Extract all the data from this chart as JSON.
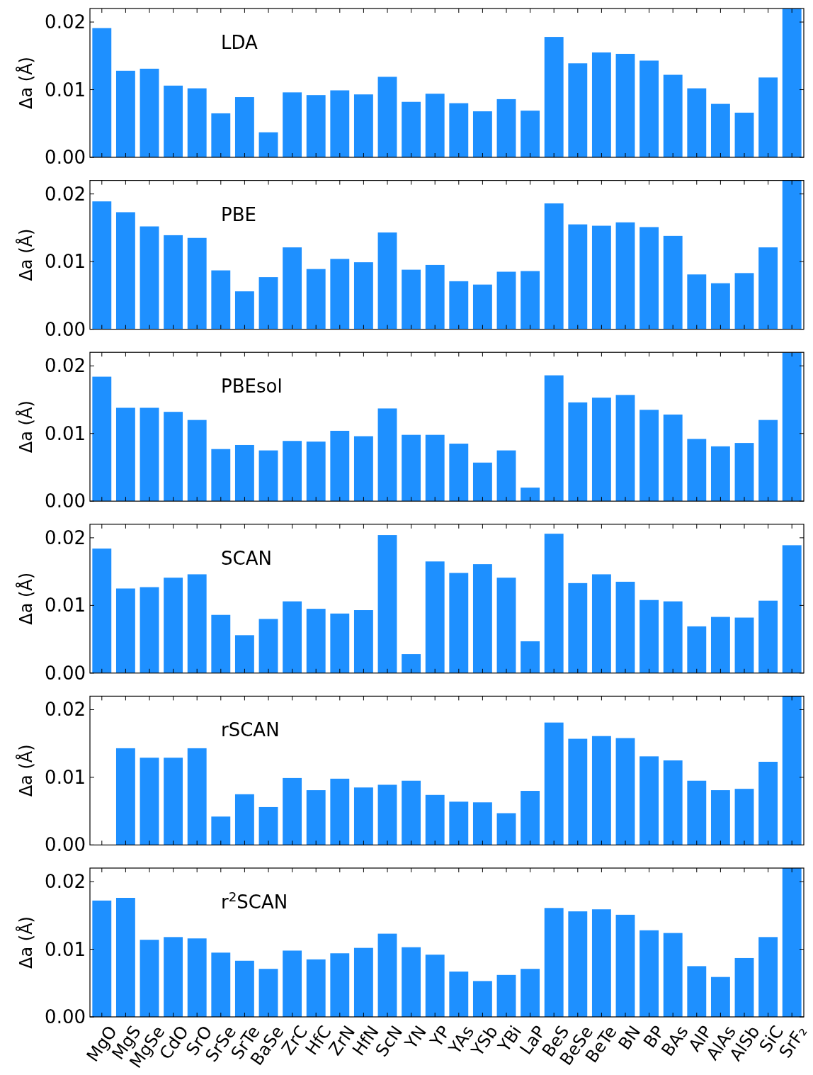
{
  "chart_data": [
    {
      "type": "bar",
      "title": "LDA",
      "ylabel": "Δa (Å)",
      "categories": [
        null,
        null,
        null,
        null,
        null,
        null,
        null,
        null,
        null,
        null,
        null,
        null,
        null,
        null,
        null,
        null,
        null,
        null,
        null,
        null,
        null,
        null,
        null,
        null,
        null,
        null,
        null,
        null,
        null,
        null
      ],
      "color": "#1e90ff",
      "values": [
        0.0191,
        0.0128,
        0.0131,
        0.0106,
        0.0102,
        0.0065,
        0.0089,
        0.0037,
        0.0096,
        0.0092,
        0.0099,
        0.0093,
        0.0119,
        0.0082,
        0.0094,
        0.008,
        0.0068,
        0.0086,
        0.0069,
        0.0178,
        0.0139,
        0.0155,
        0.0153,
        0.0143,
        0.0122,
        0.0102,
        0.0079,
        0.0066,
        0.0118,
        0.022
      ],
      "ylim": [
        0,
        0.022
      ],
      "yticks": [
        {
          "value": 0,
          "label": "0.00"
        },
        {
          "value": 0.01,
          "label": "0.01"
        },
        {
          "value": 0.02,
          "label": "0.02"
        }
      ],
      "tick_labels": "y"
    },
    {
      "type": "bar",
      "title": "PBE",
      "ylabel": "Δa (Å)",
      "categories": [
        null,
        null,
        null,
        null,
        null,
        null,
        null,
        null,
        null,
        null,
        null,
        null,
        null,
        null,
        null,
        null,
        null,
        null,
        null,
        null,
        null,
        null,
        null,
        null,
        null,
        null,
        null,
        null,
        null,
        null
      ],
      "color": "#1e90ff",
      "values": [
        0.0189,
        0.0173,
        0.0152,
        0.0139,
        0.0135,
        0.0087,
        0.0056,
        0.0077,
        0.0121,
        0.0089,
        0.0104,
        0.0099,
        0.0143,
        0.0088,
        0.0095,
        0.0071,
        0.0066,
        0.0085,
        0.0086,
        0.0186,
        0.0155,
        0.0153,
        0.0158,
        0.0151,
        0.0138,
        0.0081,
        0.0068,
        0.0083,
        0.0121,
        0.022
      ],
      "ylim": [
        0,
        0.022
      ],
      "yticks": [
        {
          "value": 0,
          "label": "0.00"
        },
        {
          "value": 0.01,
          "label": "0.01"
        },
        {
          "value": 0.02,
          "label": "0.02"
        }
      ],
      "tick_labels": "y"
    },
    {
      "type": "bar",
      "title": "PBEsol",
      "ylabel": "Δa (Å)",
      "categories": [
        null,
        null,
        null,
        null,
        null,
        null,
        null,
        null,
        null,
        null,
        null,
        null,
        null,
        null,
        null,
        null,
        null,
        null,
        null,
        null,
        null,
        null,
        null,
        null,
        null,
        null,
        null,
        null,
        null,
        null
      ],
      "color": "#1e90ff",
      "values": [
        0.0184,
        0.0138,
        0.0138,
        0.0132,
        0.012,
        0.0077,
        0.0083,
        0.0075,
        0.0089,
        0.0088,
        0.0104,
        0.0096,
        0.0137,
        0.0098,
        0.0098,
        0.0085,
        0.0057,
        0.0075,
        0.002,
        0.0186,
        0.0146,
        0.0153,
        0.0157,
        0.0135,
        0.0128,
        0.0092,
        0.0081,
        0.0086,
        0.012,
        0.022
      ],
      "ylim": [
        0,
        0.022
      ],
      "yticks": [
        {
          "value": 0,
          "label": "0.00"
        },
        {
          "value": 0.01,
          "label": "0.01"
        },
        {
          "value": 0.02,
          "label": "0.02"
        }
      ],
      "tick_labels": "y"
    },
    {
      "type": "bar",
      "title": "SCAN",
      "ylabel": "Δa (Å)",
      "categories": [
        null,
        null,
        null,
        null,
        null,
        null,
        null,
        null,
        null,
        null,
        null,
        null,
        null,
        null,
        null,
        null,
        null,
        null,
        null,
        null,
        null,
        null,
        null,
        null,
        null,
        null,
        null,
        null,
        null,
        null
      ],
      "color": "#1e90ff",
      "values": [
        0.0184,
        0.0125,
        0.0127,
        0.0141,
        0.0146,
        0.0086,
        0.0056,
        0.008,
        0.0106,
        0.0095,
        0.0088,
        0.0093,
        0.0204,
        0.0028,
        0.0165,
        0.0148,
        0.0161,
        0.0141,
        0.0047,
        0.0206,
        0.0133,
        0.0146,
        0.0135,
        0.0108,
        0.0106,
        0.0069,
        0.0083,
        0.0082,
        0.0107,
        0.0189
      ],
      "ylim": [
        0,
        0.022
      ],
      "yticks": [
        {
          "value": 0,
          "label": "0.00"
        },
        {
          "value": 0.01,
          "label": "0.01"
        },
        {
          "value": 0.02,
          "label": "0.02"
        }
      ],
      "tick_labels": "y"
    },
    {
      "type": "bar",
      "title": "rSCAN",
      "ylabel": "Δa (Å)",
      "categories": [
        null,
        null,
        null,
        null,
        null,
        null,
        null,
        null,
        null,
        null,
        null,
        null,
        null,
        null,
        null,
        null,
        null,
        null,
        null,
        null,
        null,
        null,
        null,
        null,
        null,
        null,
        null,
        null,
        null,
        null
      ],
      "color": "#1e90ff",
      "values": [
        null,
        0.0143,
        0.0129,
        0.0129,
        0.0143,
        0.0042,
        0.0075,
        0.0056,
        0.0099,
        0.0081,
        0.0098,
        0.0085,
        0.0089,
        0.0095,
        0.0074,
        0.0064,
        0.0063,
        0.0047,
        0.008,
        0.0181,
        0.0157,
        0.0161,
        0.0158,
        0.0131,
        0.0125,
        0.0095,
        0.0081,
        0.0083,
        0.0123,
        0.022
      ],
      "ylim": [
        0,
        0.022
      ],
      "yticks": [
        {
          "value": 0,
          "label": "0.00"
        },
        {
          "value": 0.01,
          "label": "0.01"
        },
        {
          "value": 0.02,
          "label": "0.02"
        }
      ],
      "tick_labels": "y"
    },
    {
      "type": "bar",
      "title": "r$^{2}$SCAN",
      "ylabel": "Δa (Å)",
      "categories": [
        "MgO",
        "MgS",
        "MgSe",
        "CdO",
        "SrO",
        "SrSe",
        "SrTe",
        "BaSe",
        "ZrC",
        "HfC",
        "ZrN",
        "HfN",
        "ScN",
        "YN",
        "YP",
        "YAs",
        "YSb",
        "YBi",
        "LaP",
        "BeS",
        "BeSe",
        "BeTe",
        "BN",
        "BP",
        "BAs",
        "AlP",
        "AlAs",
        "AlSb",
        "SiC",
        "SrF₂"
      ],
      "color": "#1e90ff",
      "values": [
        0.0172,
        0.0176,
        0.0114,
        0.0118,
        0.0116,
        0.0095,
        0.0083,
        0.0071,
        0.0098,
        0.0085,
        0.0094,
        0.0102,
        0.0123,
        0.0103,
        0.0092,
        0.0067,
        0.0053,
        0.0062,
        0.0071,
        0.0161,
        0.0156,
        0.0159,
        0.0151,
        0.0128,
        0.0124,
        0.0075,
        0.0059,
        0.0087,
        0.0118,
        0.022
      ],
      "ylim": [
        0,
        0.022
      ],
      "yticks": [
        {
          "value": 0,
          "label": "0.00"
        },
        {
          "value": 0.01,
          "label": "0.01"
        },
        {
          "value": 0.02,
          "label": "0.02"
        }
      ]
    }
  ]
}
